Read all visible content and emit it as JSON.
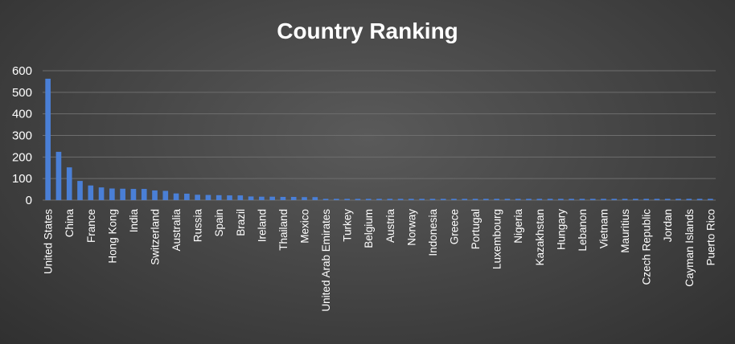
{
  "chart_data": {
    "type": "bar",
    "title": "Country Ranking",
    "xlabel": "",
    "ylabel": "",
    "ylim": [
      0,
      600
    ],
    "yticks": [
      0,
      100,
      200,
      300,
      400,
      500,
      600
    ],
    "grid": true,
    "legend": "none",
    "bar_color": "#4a7fd6",
    "categories": [
      "United States",
      "",
      "China",
      "",
      "France",
      "",
      "Hong Kong",
      "",
      "India",
      "",
      "Switzerland",
      "",
      "Australia",
      "",
      "Russia",
      "",
      "Spain",
      "",
      "Brazil",
      "",
      "Ireland",
      "",
      "Thailand",
      "",
      "Mexico",
      "",
      "United Arab Emirates",
      "",
      "Turkey",
      "",
      "Belgium",
      "",
      "Austria",
      "",
      "Norway",
      "",
      "Indonesia",
      "",
      "Greece",
      "",
      "Portugal",
      "",
      "Luxembourg",
      "",
      "Nigeria",
      "",
      "Kazakhstan",
      "",
      "Hungary",
      "",
      "Lebanon",
      "",
      "Vietnam",
      "",
      "Mauritius",
      "",
      "Czech Republic",
      "",
      "Jordan",
      "",
      "Cayman Islands",
      "",
      "Puerto Rico"
    ],
    "values": [
      563,
      224,
      152,
      89,
      68,
      59,
      54,
      53,
      52,
      52,
      45,
      43,
      31,
      30,
      25,
      24,
      23,
      22,
      22,
      17,
      16,
      16,
      15,
      15,
      14,
      14,
      6,
      6,
      6,
      6,
      6,
      6,
      6,
      6,
      6,
      6,
      6,
      6,
      6,
      6,
      6,
      6,
      6,
      6,
      6,
      6,
      6,
      6,
      6,
      6,
      6,
      6,
      6,
      6,
      6,
      6,
      6,
      6,
      6,
      6,
      6,
      6,
      6
    ]
  }
}
